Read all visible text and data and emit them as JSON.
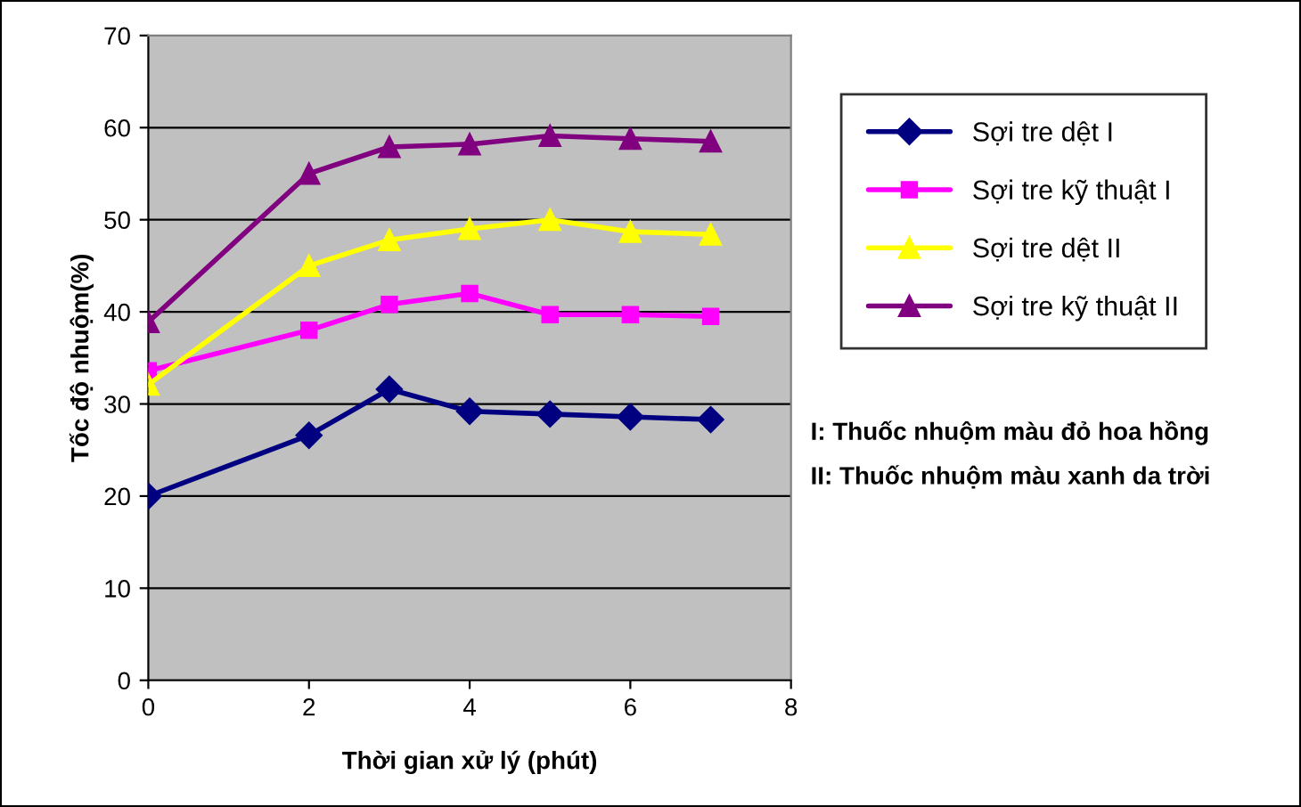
{
  "chart_data": {
    "type": "line",
    "xlabel": "Thời gian xử lý (phút)",
    "ylabel": "Tốc độ nhuộm(%)",
    "x": [
      0,
      2,
      3,
      4,
      5,
      6,
      7
    ],
    "series": [
      {
        "name": "Sợi tre dệt I",
        "color": "#000080",
        "marker": "diamond",
        "values": [
          20,
          26.6,
          31.6,
          29.2,
          28.9,
          28.6,
          28.3
        ]
      },
      {
        "name": "Sợi tre kỹ thuật I",
        "color": "#ff00ff",
        "marker": "square",
        "values": [
          33.6,
          38.0,
          40.8,
          42.0,
          39.7,
          39.7,
          39.5
        ]
      },
      {
        "name": "Sợi tre dệt II",
        "color": "#ffff00",
        "marker": "triangle",
        "values": [
          32.1,
          45.0,
          47.8,
          49.0,
          50.0,
          48.7,
          48.4
        ]
      },
      {
        "name": "Sợi tre kỹ thuật II",
        "color": "#800080",
        "marker": "triangle",
        "values": [
          38.9,
          55.0,
          57.9,
          58.2,
          59.1,
          58.8,
          58.5
        ]
      }
    ],
    "xlim": [
      0,
      8
    ],
    "xticks": [
      0,
      2,
      4,
      6,
      8
    ],
    "ylim": [
      0,
      70
    ],
    "yticks": [
      0,
      10,
      20,
      30,
      40,
      50,
      60,
      70
    ],
    "grid": "y",
    "legend": "right",
    "line_style": "solid",
    "annotations": [
      "I: Thuốc nhuộm màu đỏ hoa hồng",
      "II: Thuốc nhuộm màu xanh da trời"
    ]
  }
}
